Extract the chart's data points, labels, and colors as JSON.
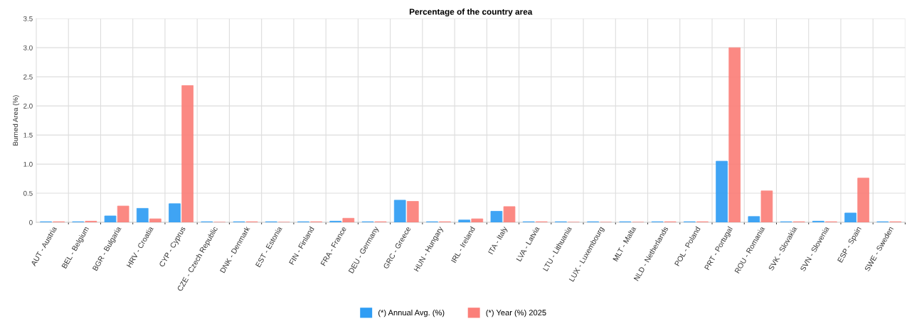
{
  "chart_data": {
    "type": "bar",
    "title": "Percentage of the country area",
    "ylabel": "Burned Area (%)",
    "categories": [
      "AUT - Austria",
      "BEL - Belgium",
      "BGR - Bulgaria",
      "HRV - Croatia",
      "CYP - Cyprus",
      "CZE - Czech Republic",
      "DNK - Denmark",
      "EST - Estonia",
      "FIN - Finland",
      "FRA - France",
      "DEU - Germany",
      "GRC - Greece",
      "HUN - Hungary",
      "IRL - Ireland",
      "ITA - Italy",
      "LVA - Latvia",
      "LTU - Lithuania",
      "LUX - Luxembourg",
      "MLT - Malta",
      "NLD - Netherlands",
      "POL - Poland",
      "PRT - Portugal",
      "ROU - Romania",
      "SVK - Slovakia",
      "SVN - Slovenia",
      "ESP - Spain",
      "SWE - Sweden"
    ],
    "series": [
      {
        "name": "(*) Annual Avg. (%)",
        "color": "#2f9df4",
        "values": [
          0.01,
          0.01,
          0.11,
          0.24,
          0.32,
          0.01,
          0.01,
          0.01,
          0.01,
          0.02,
          0.01,
          0.38,
          0.01,
          0.04,
          0.19,
          0.01,
          0.01,
          0.01,
          0.01,
          0.01,
          0.01,
          1.05,
          0.1,
          0.01,
          0.02,
          0.16,
          0.01
        ]
      },
      {
        "name": "(*) Year (%) 2025",
        "color": "#fb7f79",
        "values": [
          0.01,
          0.02,
          0.28,
          0.06,
          2.35,
          0,
          0.01,
          0,
          0.01,
          0.07,
          0.01,
          0.36,
          0.01,
          0.06,
          0.27,
          0.01,
          0,
          0,
          0,
          0.01,
          0.01,
          3.0,
          0.54,
          0.01,
          0.01,
          0.76,
          0.01
        ]
      }
    ],
    "ylim": [
      0,
      3.5
    ],
    "yticks": [
      0,
      {
        "value": 0.5,
        "label": "0.5"
      },
      {
        "value": 1.0,
        "label": "1.0"
      },
      {
        "value": 1.5,
        "label": "1.5"
      },
      {
        "value": 2.0,
        "label": "2.0"
      },
      {
        "value": 2.5,
        "label": "2.5"
      },
      {
        "value": 3.0,
        "label": "3.0"
      },
      {
        "value": 3.5,
        "label": "3.5"
      }
    ],
    "grid": true,
    "legend": "bottom"
  }
}
